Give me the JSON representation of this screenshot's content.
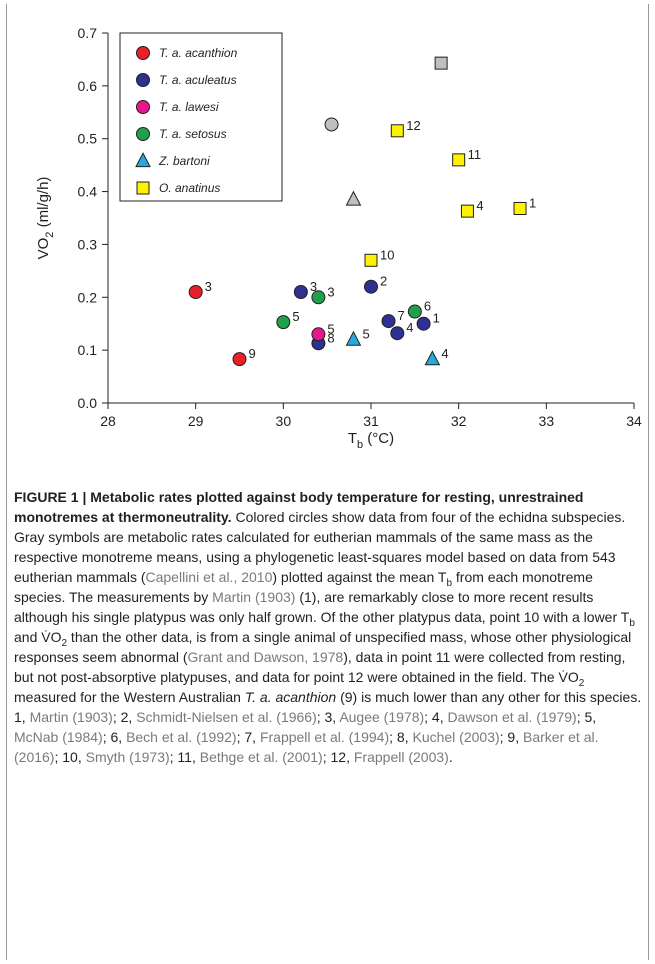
{
  "chart_data": {
    "type": "scatter",
    "xlabel_main": "T",
    "xlabel_sub": "b",
    "xlabel_unit": " (°C)",
    "ylabel_main": "VO",
    "ylabel_sub": "2",
    "ylabel_unit": " (ml/g/h)",
    "xlim": [
      28,
      34
    ],
    "ylim": [
      0.0,
      0.7
    ],
    "xticks": [
      "28",
      "29",
      "30",
      "31",
      "32",
      "33",
      "34"
    ],
    "yticks": [
      "0.0",
      "0.1",
      "0.2",
      "0.3",
      "0.4",
      "0.5",
      "0.6",
      "0.7"
    ],
    "legend_position": "top-left",
    "series": [
      {
        "name": "T. a. acanthion",
        "marker": "circle",
        "color": "#e8202a",
        "points": [
          {
            "x": 29.0,
            "y": 0.21,
            "label": "3"
          },
          {
            "x": 29.5,
            "y": 0.083,
            "label": "9"
          }
        ]
      },
      {
        "name": "T. a. aculeatus",
        "marker": "circle",
        "color": "#2e3192",
        "points": [
          {
            "x": 30.2,
            "y": 0.21,
            "label": "3"
          },
          {
            "x": 31.0,
            "y": 0.22,
            "label": "2"
          },
          {
            "x": 30.4,
            "y": 0.113,
            "label": "8"
          },
          {
            "x": 31.2,
            "y": 0.155,
            "label": "7"
          },
          {
            "x": 31.3,
            "y": 0.132,
            "label": "4"
          },
          {
            "x": 31.6,
            "y": 0.15,
            "label": "1"
          }
        ]
      },
      {
        "name": "T. a. lawesi",
        "marker": "circle",
        "color": "#e6178c",
        "points": [
          {
            "x": 30.4,
            "y": 0.13,
            "label": "5"
          }
        ]
      },
      {
        "name": "T. a. setosus",
        "marker": "circle",
        "color": "#1fa04b",
        "points": [
          {
            "x": 30.0,
            "y": 0.153,
            "label": "5"
          },
          {
            "x": 30.4,
            "y": 0.2,
            "label": "3"
          },
          {
            "x": 31.5,
            "y": 0.173,
            "label": "6"
          }
        ]
      },
      {
        "name": "Z. bartoni",
        "marker": "triangle",
        "color": "#29a8e0",
        "points": [
          {
            "x": 30.8,
            "y": 0.12,
            "label": "5"
          },
          {
            "x": 31.7,
            "y": 0.083,
            "label": "4"
          }
        ]
      },
      {
        "name": "O. anatinus",
        "marker": "square",
        "color": "#fff200",
        "points": [
          {
            "x": 31.3,
            "y": 0.515,
            "label": "12"
          },
          {
            "x": 32.0,
            "y": 0.46,
            "label": "11"
          },
          {
            "x": 32.1,
            "y": 0.363,
            "label": "4"
          },
          {
            "x": 32.7,
            "y": 0.368,
            "label": "1"
          },
          {
            "x": 31.0,
            "y": 0.27,
            "label": "10"
          }
        ]
      },
      {
        "name": "",
        "marker": "circle",
        "color": "#c0c0c0",
        "points": [
          {
            "x": 30.55,
            "y": 0.527,
            "label": ""
          }
        ]
      },
      {
        "name": "",
        "marker": "triangle",
        "color": "#c0c0c0",
        "points": [
          {
            "x": 30.8,
            "y": 0.385,
            "label": ""
          }
        ]
      },
      {
        "name": "",
        "marker": "square",
        "color": "#c0c0c0",
        "points": [
          {
            "x": 31.8,
            "y": 0.643,
            "label": ""
          }
        ]
      }
    ]
  },
  "caption": {
    "title": "FIGURE 1 | Metabolic rates plotted against body temperature for resting, unrestrained monotremes at thermoneutrality.",
    "t1": " Colored circles show data from four of the echidna subspecies. Gray symbols are metabolic rates calculated for eutherian mammals of the same mass as the respective monotreme means, using a phylogenetic least-squares model based on data from 543 eutherian mammals (",
    "c1": "Capellini et al., 2010",
    "t2": ") plotted against the mean T",
    "tb_sub": "b",
    "t3": " from each monotreme species. The measurements by ",
    "c2": "Martin (1903)",
    "t4": " (1), are remarkably close to more recent results although his single platypus was only half grown. Of the other platypus data, point 10 with a lower T",
    "t5": " and V̇O",
    "vo2_sub": "2",
    "t6": " than the other data, is from a single animal of unspecified mass, whose other physiological responses seem abnormal (",
    "c3": "Grant and Dawson, 1978",
    "t7": "), data in point 11 were collected from resting, but not post-absorptive platypuses, and data for point 12 were obtained in the field. The V̇O",
    "t8": " measured for the Western Australian ",
    "it1": "T. a. acanthion",
    "t9": " (9) is much lower than any other for this species. 1, ",
    "c4": "Martin (1903)",
    "t10": "; 2, ",
    "c5": "Schmidt-Nielsen et al. (1966)",
    "t11": "; 3, ",
    "c6": "Augee (1978)",
    "t12": "; 4, ",
    "c7": "Dawson et al. (1979)",
    "t13": "; 5, ",
    "c8": "McNab (1984)",
    "t14": "; 6, ",
    "c9": "Bech et al. (1992)",
    "t15": "; 7, ",
    "c10": "Frappell et al. (1994)",
    "t16": "; 8, ",
    "c11": "Kuchel (2003)",
    "t17": "; 9, ",
    "c12": "Barker et al. (2016)",
    "t18": "; 10, ",
    "c13": "Smyth (1973)",
    "t19": "; 11, ",
    "c14": "Bethge et al. (2001)",
    "t20": "; 12, ",
    "c15": "Frappell (2003)",
    "t21": "."
  }
}
